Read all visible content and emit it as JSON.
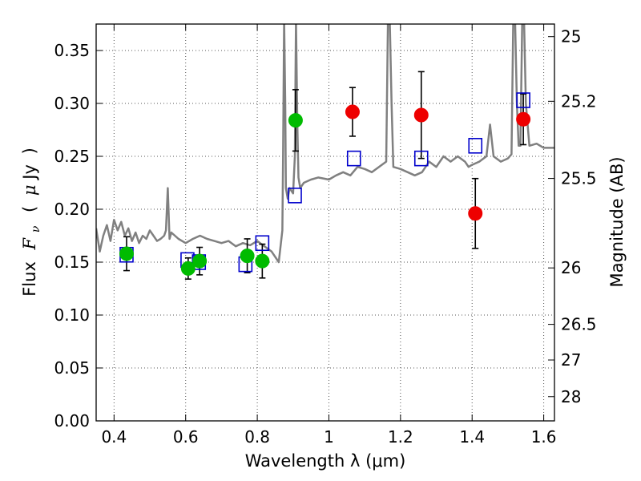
{
  "chart_data": {
    "type": "scatter",
    "title": "",
    "xlabel": "Wavelength  λ (μm)",
    "ylabel": "Flux  F_ν  ( μJy )",
    "ylabel_parts": {
      "pre": "Flux",
      "sym": "F",
      "sub": "ν",
      "open": "(",
      "mu": "μ",
      "unit": "Jy",
      "close": ")"
    },
    "y2label": "Magnitude (AB)",
    "xlim": [
      0.35,
      1.63
    ],
    "ylim": [
      0.0,
      0.375
    ],
    "grid": true,
    "x_ticks": [
      {
        "value": 0.4,
        "label": "0.4"
      },
      {
        "value": 0.6,
        "label": "0.6"
      },
      {
        "value": 0.8,
        "label": "0.8"
      },
      {
        "value": 1.0,
        "label": "1"
      },
      {
        "value": 1.2,
        "label": "1.2"
      },
      {
        "value": 1.4,
        "label": "1.4"
      },
      {
        "value": 1.6,
        "label": "1.6"
      }
    ],
    "y_ticks": [
      {
        "value": 0.0,
        "label": "0.00"
      },
      {
        "value": 0.05,
        "label": "0.05"
      },
      {
        "value": 0.1,
        "label": "0.10"
      },
      {
        "value": 0.15,
        "label": "0.15"
      },
      {
        "value": 0.2,
        "label": "0.20"
      },
      {
        "value": 0.25,
        "label": "0.25"
      },
      {
        "value": 0.3,
        "label": "0.30"
      },
      {
        "value": 0.35,
        "label": "0.35"
      }
    ],
    "y2_ticks": [
      {
        "value": 25,
        "label": "25"
      },
      {
        "value": 25.2,
        "label": "25.2"
      },
      {
        "value": 25.5,
        "label": "25.5"
      },
      {
        "value": 26,
        "label": "26"
      },
      {
        "value": 26.5,
        "label": "26.5"
      },
      {
        "value": 27,
        "label": "27"
      },
      {
        "value": 28,
        "label": "28"
      }
    ],
    "y2_zero_point_ujy": 3631000000,
    "colors": {
      "template": "#808080",
      "model": "#0000cc",
      "green": "#00bb00",
      "red": "#ee0000",
      "errorbar": "#000000",
      "grid": "#555555"
    },
    "template_spectrum": {
      "x": [
        0.35,
        0.36,
        0.37,
        0.38,
        0.39,
        0.4,
        0.41,
        0.42,
        0.43,
        0.44,
        0.45,
        0.46,
        0.47,
        0.48,
        0.49,
        0.5,
        0.51,
        0.52,
        0.53,
        0.54,
        0.545,
        0.55,
        0.555,
        0.56,
        0.58,
        0.6,
        0.62,
        0.64,
        0.66,
        0.68,
        0.7,
        0.72,
        0.74,
        0.76,
        0.78,
        0.8,
        0.82,
        0.84,
        0.86,
        0.87,
        0.872,
        0.875,
        0.878,
        0.88,
        0.885,
        0.89,
        0.9,
        0.905,
        0.908,
        0.912,
        0.915,
        0.92,
        0.93,
        0.95,
        0.97,
        1.0,
        1.02,
        1.04,
        1.06,
        1.08,
        1.1,
        1.12,
        1.14,
        1.16,
        1.165,
        1.17,
        1.175,
        1.18,
        1.2,
        1.22,
        1.24,
        1.26,
        1.28,
        1.3,
        1.32,
        1.34,
        1.36,
        1.38,
        1.39,
        1.4,
        1.42,
        1.44,
        1.45,
        1.46,
        1.48,
        1.5,
        1.51,
        1.515,
        1.52,
        1.525,
        1.53,
        1.535,
        1.54,
        1.545,
        1.55,
        1.56,
        1.58,
        1.6,
        1.63
      ],
      "y": [
        0.182,
        0.16,
        0.175,
        0.185,
        0.17,
        0.19,
        0.18,
        0.188,
        0.175,
        0.182,
        0.17,
        0.178,
        0.168,
        0.175,
        0.172,
        0.18,
        0.175,
        0.17,
        0.172,
        0.175,
        0.18,
        0.22,
        0.172,
        0.178,
        0.172,
        0.168,
        0.172,
        0.175,
        0.172,
        0.17,
        0.168,
        0.17,
        0.165,
        0.168,
        0.166,
        0.17,
        0.165,
        0.16,
        0.15,
        0.18,
        0.25,
        0.38,
        0.3,
        0.22,
        0.21,
        0.22,
        0.215,
        0.25,
        0.38,
        0.28,
        0.23,
        0.22,
        0.225,
        0.228,
        0.23,
        0.228,
        0.232,
        0.235,
        0.232,
        0.24,
        0.238,
        0.235,
        0.24,
        0.245,
        0.38,
        0.38,
        0.3,
        0.24,
        0.238,
        0.235,
        0.232,
        0.235,
        0.245,
        0.24,
        0.25,
        0.245,
        0.25,
        0.245,
        0.24,
        0.242,
        0.245,
        0.25,
        0.28,
        0.25,
        0.245,
        0.248,
        0.252,
        0.38,
        0.38,
        0.3,
        0.26,
        0.26,
        0.38,
        0.38,
        0.3,
        0.26,
        0.262,
        0.258,
        0.258
      ]
    },
    "series": [
      {
        "marker": "square",
        "x": [
          0.435,
          0.605,
          0.637,
          0.767,
          0.814,
          0.905,
          1.07,
          1.258,
          1.409,
          1.543
        ],
        "y": [
          0.157,
          0.152,
          0.15,
          0.148,
          0.168,
          0.213,
          0.248,
          0.248,
          0.26,
          0.303
        ]
      },
      {
        "marker": "circle",
        "color": "green",
        "points": [
          {
            "x": 0.435,
            "y": 0.158,
            "err": 0.016
          },
          {
            "x": 0.607,
            "y": 0.144,
            "err": 0.01
          },
          {
            "x": 0.639,
            "y": 0.151,
            "err": 0.013
          },
          {
            "x": 0.772,
            "y": 0.156,
            "err": 0.016
          },
          {
            "x": 0.814,
            "y": 0.151,
            "err": 0.016
          },
          {
            "x": 0.907,
            "y": 0.284,
            "err": 0.029
          }
        ]
      },
      {
        "marker": "circle",
        "color": "red",
        "points": [
          {
            "x": 1.066,
            "y": 0.292,
            "err": 0.023
          },
          {
            "x": 1.258,
            "y": 0.289,
            "err": 0.041
          },
          {
            "x": 1.409,
            "y": 0.196,
            "err": 0.033
          },
          {
            "x": 1.543,
            "y": 0.285,
            "err": 0.024
          }
        ]
      }
    ]
  }
}
